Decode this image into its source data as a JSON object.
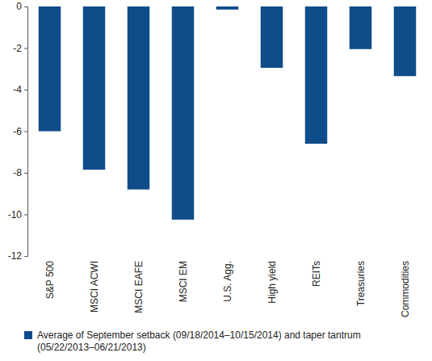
{
  "chart_data": {
    "type": "bar",
    "categories": [
      "S&P 500",
      "MSCI ACWI",
      "MSCI EAFE",
      "MSCI EM",
      "U.S. Agg.",
      "High yield",
      "REITs",
      "Treasuries",
      "Commodities"
    ],
    "series": [
      {
        "name": "Average of September setback (09/18/2014–10/15/2014) and taper tantrum (05/22/2013–06/21/2013)",
        "color": "#0f4c8a",
        "values": [
          -6.0,
          -7.85,
          -8.8,
          -10.25,
          -0.15,
          -2.95,
          -6.6,
          -2.05,
          -3.35
        ]
      }
    ],
    "ylim": [
      -12,
      0
    ],
    "yticks": [
      0,
      -2,
      -4,
      -6,
      -8,
      -10,
      -12
    ],
    "grid": false,
    "legend": "bottom"
  }
}
